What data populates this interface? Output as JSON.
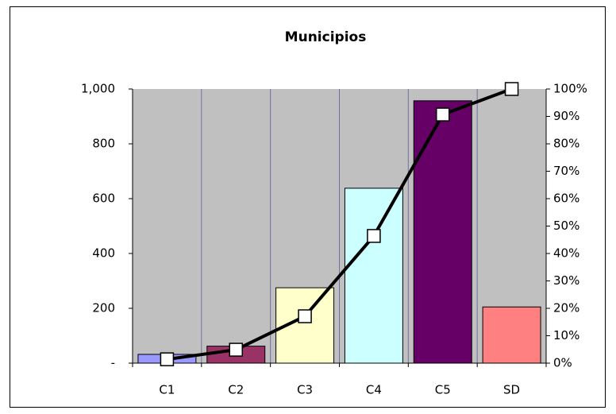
{
  "chart_data": {
    "type": "bar_line",
    "title": "Municipios",
    "categories": [
      "C1",
      "C2",
      "C3",
      "C4",
      "C5",
      "SD"
    ],
    "series": [
      {
        "type": "bar",
        "axis": "y",
        "colors": [
          "#9999ff",
          "#993366",
          "#ffffcc",
          "#ccffff",
          "#660066",
          "#ff8080"
        ],
        "values": [
          32,
          62,
          275,
          638,
          957,
          205
        ]
      },
      {
        "type": "line",
        "axis": "y2",
        "color": "#000000",
        "values": [
          1.4,
          4.9,
          17.1,
          46.4,
          90.7,
          100
        ]
      }
    ],
    "ylim": [
      0,
      1000
    ],
    "yticks": [
      {
        "value": 0,
        "label": "-"
      },
      200,
      400,
      600,
      800,
      {
        "value": 1000,
        "label": "1,000"
      }
    ],
    "y2lim": [
      0,
      100
    ],
    "y2ticks": [
      {
        "value": 0,
        "label": "0%"
      },
      {
        "value": 10,
        "label": "10%"
      },
      {
        "value": 20,
        "label": "20%"
      },
      {
        "value": 30,
        "label": "30%"
      },
      {
        "value": 40,
        "label": "40%"
      },
      {
        "value": 50,
        "label": "50%"
      },
      {
        "value": 60,
        "label": "60%"
      },
      {
        "value": 70,
        "label": "70%"
      },
      {
        "value": 80,
        "label": "80%"
      },
      {
        "value": 90,
        "label": "90%"
      },
      {
        "value": 100,
        "label": "100%"
      }
    ],
    "plot_background": "#c0c0c0",
    "grid": false
  }
}
